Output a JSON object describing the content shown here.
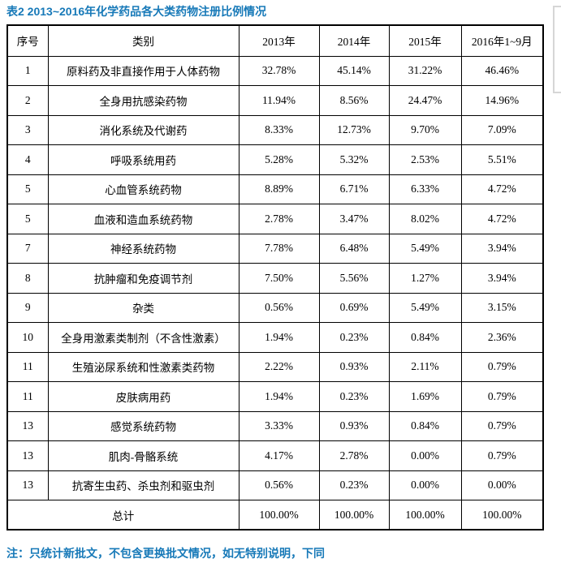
{
  "title": "表2 2013~2016年化学药品各大类药物注册比例情况",
  "note": "注：只统计新批文，不包含更换批文情况，如无特别说明，下同",
  "colors": {
    "accent": "#1779b8",
    "table_border": "#000000",
    "bracket": "#d6d6d6",
    "background": "#ffffff"
  },
  "table": {
    "headers": [
      "序号",
      "类别",
      "2013年",
      "2014年",
      "2015年",
      "2016年1~9月"
    ],
    "rows": [
      {
        "no": "1",
        "category": "原料药及非直接作用于人体药物",
        "values": [
          "32.78%",
          "45.14%",
          "31.22%",
          "46.46%"
        ]
      },
      {
        "no": "2",
        "category": "全身用抗感染药物",
        "values": [
          "11.94%",
          "8.56%",
          "24.47%",
          "14.96%"
        ]
      },
      {
        "no": "3",
        "category": "消化系统及代谢药",
        "values": [
          "8.33%",
          "12.73%",
          "9.70%",
          "7.09%"
        ]
      },
      {
        "no": "4",
        "category": "呼吸系统用药",
        "values": [
          "5.28%",
          "5.32%",
          "2.53%",
          "5.51%"
        ]
      },
      {
        "no": "5",
        "category": "心血管系统药物",
        "values": [
          "8.89%",
          "6.71%",
          "6.33%",
          "4.72%"
        ]
      },
      {
        "no": "5",
        "category": "血液和造血系统药物",
        "values": [
          "2.78%",
          "3.47%",
          "8.02%",
          "4.72%"
        ]
      },
      {
        "no": "7",
        "category": "神经系统药物",
        "values": [
          "7.78%",
          "6.48%",
          "5.49%",
          "3.94%"
        ]
      },
      {
        "no": "8",
        "category": "抗肿瘤和免疫调节剂",
        "values": [
          "7.50%",
          "5.56%",
          "1.27%",
          "3.94%"
        ]
      },
      {
        "no": "9",
        "category": "杂类",
        "values": [
          "0.56%",
          "0.69%",
          "5.49%",
          "3.15%"
        ]
      },
      {
        "no": "10",
        "category": "全身用激素类制剂（不含性激素）",
        "values": [
          "1.94%",
          "0.23%",
          "0.84%",
          "2.36%"
        ]
      },
      {
        "no": "11",
        "category": "生殖泌尿系统和性激素类药物",
        "values": [
          "2.22%",
          "0.93%",
          "2.11%",
          "0.79%"
        ]
      },
      {
        "no": "11",
        "category": "皮肤病用药",
        "values": [
          "1.94%",
          "0.23%",
          "1.69%",
          "0.79%"
        ]
      },
      {
        "no": "13",
        "category": "感觉系统药物",
        "values": [
          "3.33%",
          "0.93%",
          "0.84%",
          "0.79%"
        ]
      },
      {
        "no": "13",
        "category": "肌肉-骨骼系统",
        "values": [
          "4.17%",
          "2.78%",
          "0.00%",
          "0.79%"
        ]
      },
      {
        "no": "13",
        "category": "抗寄生虫药、杀虫剂和驱虫剂",
        "values": [
          "0.56%",
          "0.23%",
          "0.00%",
          "0.00%"
        ]
      }
    ],
    "total_row": {
      "label": "总计",
      "values": [
        "100.00%",
        "100.00%",
        "100.00%",
        "100.00%"
      ]
    }
  }
}
